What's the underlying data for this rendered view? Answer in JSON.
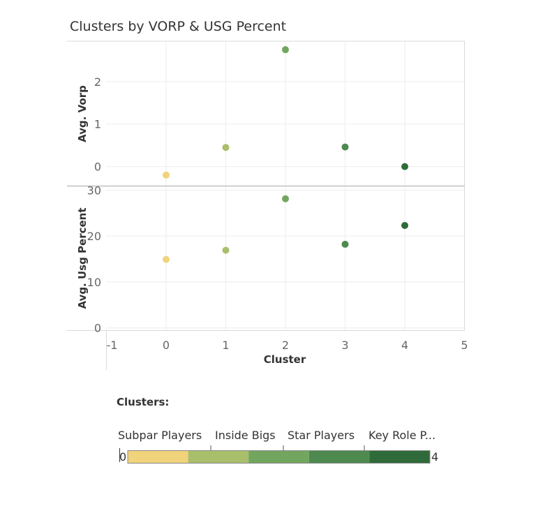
{
  "chart_data": {
    "type": "scatter",
    "title": "Clusters by VORP & USG Percent",
    "xlabel": "Cluster",
    "xlim": [
      -1,
      5
    ],
    "x_ticks": [
      "-1",
      "0",
      "1",
      "2",
      "3",
      "4",
      "5"
    ],
    "panels": [
      {
        "ylabel": "Avg. Vorp",
        "ylim": [
          -0.45,
          2.95
        ],
        "y_ticks": [
          "0",
          "1",
          "2"
        ],
        "points": [
          {
            "x": 0,
            "y": -0.2
          },
          {
            "x": 1,
            "y": 0.45
          },
          {
            "x": 2,
            "y": 2.75
          },
          {
            "x": 3,
            "y": 0.46
          },
          {
            "x": 4,
            "y": 0.0
          }
        ]
      },
      {
        "ylabel": "Avg. Usg Percent",
        "ylim": [
          -0.5,
          30.8
        ],
        "y_ticks": [
          "0",
          "10",
          "20",
          "30"
        ],
        "points": [
          {
            "x": 0,
            "y": 14.9
          },
          {
            "x": 1,
            "y": 16.9
          },
          {
            "x": 2,
            "y": 28.1
          },
          {
            "x": 3,
            "y": 18.2
          },
          {
            "x": 4,
            "y": 22.3
          }
        ]
      }
    ],
    "grid": true,
    "colors": [
      "#f0d37a",
      "#a9bf6b",
      "#72a65e",
      "#4e8a4f",
      "#2f6b3a"
    ],
    "legend": {
      "title": "Clusters:",
      "labels": [
        "Subpar Players",
        "Inside Bigs",
        "Star Players",
        "Key Role P..."
      ],
      "min_label": "0",
      "max_label": "4",
      "placement": "bottom-left"
    }
  }
}
